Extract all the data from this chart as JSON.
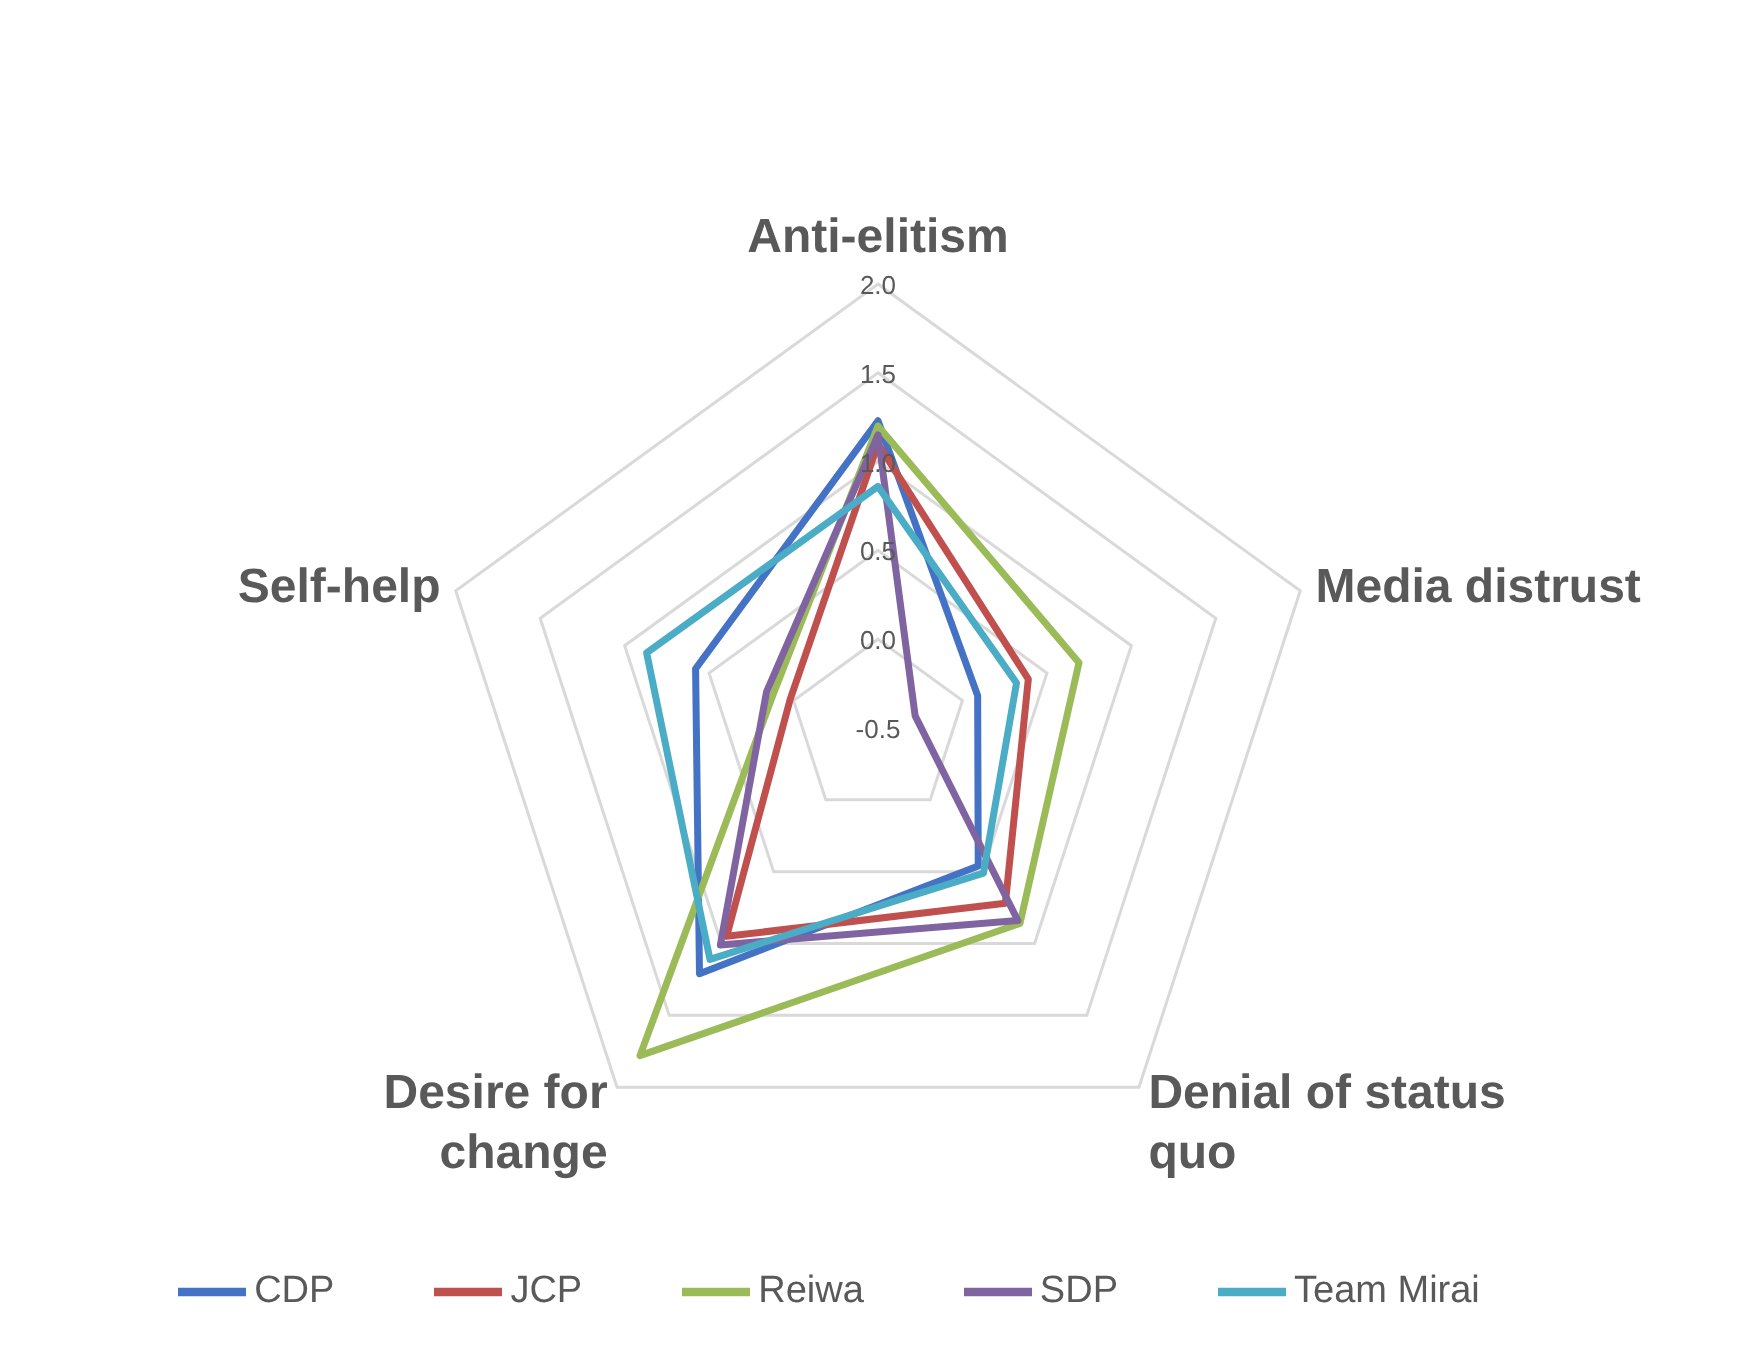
{
  "chart_data": {
    "type": "radar",
    "categories": [
      "Anti-elitism",
      "Media distrust",
      "Denial of status quo",
      "Desire for change",
      "Self-help"
    ],
    "ylim": [
      -0.5,
      2.0
    ],
    "yticks": [
      {
        "value": -0.5,
        "label": "-0.5"
      },
      {
        "value": 0,
        "label": "0.0"
      },
      {
        "value": 0.5,
        "label": "0.5"
      },
      {
        "value": 1,
        "label": "1.0"
      },
      {
        "value": 1.5,
        "label": "1.5"
      },
      {
        "value": 2,
        "label": "2.0"
      }
    ],
    "grid": true,
    "legend": "bottom",
    "marker": "none",
    "line_style": "solid",
    "series": [
      {
        "name": "CDP",
        "color": "#4472c4",
        "values": [
          1.23,
          0.09,
          0.46,
          1.21,
          0.58
        ]
      },
      {
        "name": "JCP",
        "color": "#c0504d",
        "values": [
          1.1,
          0.39,
          0.72,
          0.95,
          0.02
        ]
      },
      {
        "name": "Reiwa",
        "color": "#9bbb59",
        "values": [
          1.2,
          0.69,
          0.86,
          1.78,
          0.12
        ]
      },
      {
        "name": "SDP",
        "color": "#8064a2",
        "values": [
          1.15,
          -0.28,
          0.84,
          1.01,
          0.16
        ]
      },
      {
        "name": "Team Mirai",
        "color": "#4bacc6",
        "values": [
          0.86,
          0.32,
          0.51,
          1.11,
          0.87
        ]
      }
    ]
  }
}
